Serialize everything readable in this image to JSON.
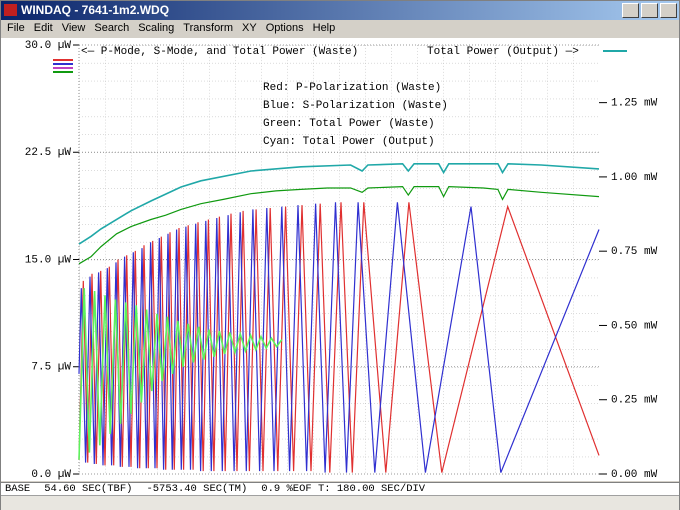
{
  "window": {
    "title": "WINDAQ - 7641-1m2.WDQ",
    "menu": [
      "File",
      "Edit",
      "View",
      "Search",
      "Scaling",
      "Transform",
      "XY",
      "Options",
      "Help"
    ],
    "status_bar": [
      "BASE",
      "54.60 SEC(TBF)",
      "-5753.40 SEC(TM)",
      "0.9 %EOF T: 180.00 SEC/DIV"
    ]
  },
  "chart_data": {
    "type": "line",
    "annotations": [
      "<— P-Mode, S-Mode, and Total Power (Waste)",
      "Total Power (Output) —>"
    ],
    "xlim": [
      0,
      1800
    ],
    "ylim": [
      0,
      30
    ],
    "y2lim": [
      0,
      1.444
    ],
    "grid": true,
    "yticks": [
      {
        "value": 0,
        "label": "0.0 µW"
      },
      {
        "value": 7.5,
        "label": "7.5 µW"
      },
      {
        "value": 15,
        "label": "15.0 µW"
      },
      {
        "value": 22.5,
        "label": "22.5 µW"
      },
      {
        "value": 30,
        "label": "30.0 µW"
      }
    ],
    "y2ticks": [
      {
        "value": 0,
        "label": "0.00 mW"
      },
      {
        "value": 0.25,
        "label": "0.25 mW"
      },
      {
        "value": 0.5,
        "label": "0.50 mW"
      },
      {
        "value": 0.75,
        "label": "0.75 mW"
      },
      {
        "value": 1,
        "label": "1.00 mW"
      },
      {
        "value": 1.25,
        "label": "1.25 mW"
      }
    ],
    "series": [
      {
        "name": "Red: P-Polarization (Waste)",
        "color": "#e03030",
        "x": [
          0,
          15,
          30,
          45,
          60,
          75,
          90,
          105,
          120,
          135,
          150,
          165,
          180,
          195,
          210,
          225,
          240,
          255,
          270,
          285,
          300,
          315,
          330,
          346,
          362,
          378,
          395,
          412,
          430,
          448,
          467,
          486,
          506,
          526,
          547,
          568,
          590,
          613,
          637,
          662,
          688,
          715,
          743,
          772,
          803,
          835,
          868,
          907,
          946,
          986,
          1062,
          1142,
          1256,
          1484,
          1800
        ],
        "values": [
          1.0,
          13.5,
          0.8,
          14,
          0.7,
          14.2,
          0.6,
          14.5,
          0.6,
          15,
          0.5,
          15.3,
          0.5,
          15.6,
          0.4,
          16,
          0.4,
          16.3,
          0.4,
          16.6,
          0.3,
          16.9,
          0.3,
          17.2,
          0.3,
          17.4,
          0.3,
          17.6,
          0.2,
          17.8,
          0.2,
          18,
          0.2,
          18.2,
          0.2,
          18.4,
          0.2,
          18.5,
          0.2,
          18.6,
          0.2,
          18.7,
          0.2,
          18.8,
          0.2,
          18.9,
          0.1,
          19,
          0.1,
          19,
          0.1,
          19,
          0.1,
          18.7,
          1.3
        ]
      },
      {
        "name": "Blue: S-Polarization (Waste)",
        "color": "#3030d0",
        "x": [
          0,
          8,
          23,
          38,
          53,
          68,
          83,
          98,
          113,
          128,
          143,
          158,
          173,
          188,
          203,
          218,
          233,
          248,
          263,
          278,
          293,
          308,
          323,
          338,
          354,
          370,
          386,
          404,
          421,
          439,
          458,
          477,
          496,
          516,
          537,
          558,
          579,
          602,
          625,
          650,
          675,
          702,
          729,
          758,
          788,
          819,
          852,
          888,
          926,
          966,
          1024,
          1102,
          1199,
          1357,
          1460,
          1800
        ],
        "values": [
          7,
          13,
          0.8,
          13.8,
          0.7,
          14.1,
          0.6,
          14.4,
          0.6,
          14.8,
          0.5,
          15.2,
          0.5,
          15.5,
          0.4,
          15.8,
          0.4,
          16.2,
          0.4,
          16.5,
          0.3,
          16.8,
          0.3,
          17.1,
          0.3,
          17.3,
          0.3,
          17.5,
          0.2,
          17.7,
          0.2,
          17.9,
          0.2,
          18.1,
          0.2,
          18.3,
          0.2,
          18.5,
          0.2,
          18.6,
          0.2,
          18.7,
          0.2,
          18.8,
          0.2,
          18.9,
          0.1,
          19,
          0.1,
          19,
          0.1,
          19,
          0.1,
          18.7,
          0.1,
          17.1
        ]
      },
      {
        "color": "#5cf25c",
        "x": [
          0,
          18,
          36,
          54,
          72,
          90,
          108,
          126,
          144,
          162,
          180,
          198,
          216,
          234,
          252,
          270,
          288,
          306,
          324,
          342,
          360,
          378,
          396,
          414,
          432,
          450,
          468,
          486,
          504,
          522,
          540,
          558,
          576,
          594,
          612,
          630,
          648,
          666,
          684,
          702
        ],
        "values": [
          1,
          13,
          1.5,
          12.8,
          2,
          12.5,
          2.8,
          12.2,
          3.5,
          12,
          4.2,
          11.8,
          5,
          11.5,
          5.8,
          11.2,
          6.5,
          11,
          7,
          10.7,
          7.5,
          10.5,
          7.8,
          10.3,
          8,
          10.1,
          8.2,
          10,
          8.4,
          9.9,
          8.5,
          9.8,
          8.6,
          9.7,
          8.7,
          9.6,
          8.8,
          9.5,
          8.9,
          9.4
        ]
      },
      {
        "name": "Green: Total Power (Waste)",
        "color": "#109a10",
        "x": [
          0,
          42,
          76,
          130,
          180,
          249,
          300,
          353,
          422,
          500,
          595,
          682,
          768,
          860,
          940,
          980,
          1000,
          1120,
          1140,
          1160,
          1245,
          1262,
          1280,
          1400,
          1450,
          1466,
          1485,
          1600,
          1800
        ],
        "values": [
          14.7,
          15.2,
          15.9,
          16.8,
          17.3,
          17.8,
          18.1,
          18.5,
          18.9,
          19.2,
          19.6,
          19.8,
          19.9,
          20,
          20,
          19.7,
          20,
          20.1,
          19.5,
          20.1,
          20.1,
          19.4,
          20.1,
          20,
          19.9,
          19.2,
          19.9,
          19.7,
          19.4
        ]
      },
      {
        "name": "Cyan: Total Power (Output)",
        "color": "#20a8a8",
        "axis": "y2",
        "x": [
          0,
          42,
          76,
          180,
          249,
          353,
          422,
          595,
          768,
          940,
          980,
          1000,
          1120,
          1140,
          1160,
          1245,
          1262,
          1280,
          1450,
          1466,
          1485,
          1600,
          1800
        ],
        "values": [
          0.774,
          0.8,
          0.825,
          0.886,
          0.919,
          0.966,
          0.987,
          1.02,
          1.034,
          1.04,
          1.02,
          1.04,
          1.044,
          1.02,
          1.044,
          1.044,
          1.015,
          1.044,
          1.044,
          1.015,
          1.044,
          1.04,
          1.027
        ]
      }
    ]
  }
}
